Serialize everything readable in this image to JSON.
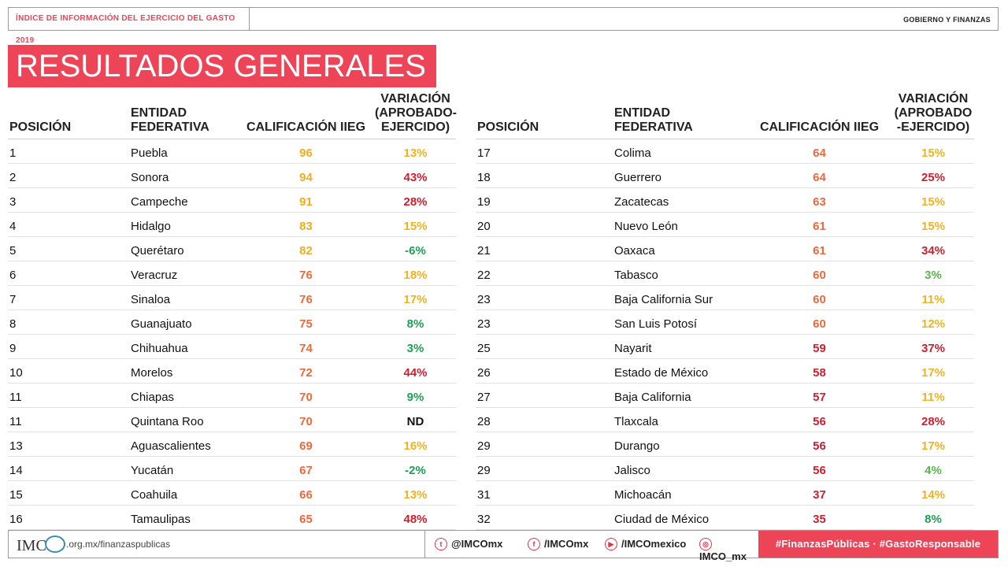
{
  "header": {
    "left_title": "ÍNDICE DE INFORMACIÓN DEL EJERCICIO DEL GASTO 2019",
    "right_title": "GOBIERNO Y FINANZAS"
  },
  "banner": "RESULTADOS GENERALES",
  "table_headers": {
    "position": "POSICIÓN",
    "entity_line1": "ENTIDAD",
    "entity_line2": "FEDERATIVA",
    "score": "CALIFICACIÓN IIEG",
    "variation_left": [
      "VARIACIÓN",
      "(APROBADO-",
      "EJERCIDO)"
    ],
    "variation_right": [
      "VARIACIÓN",
      "(APROBADO",
      "-EJERCIDO)"
    ]
  },
  "colors": {
    "accent": "#ee4458",
    "score_high": "#f0ad1c",
    "score_mid": "#eb6a3b",
    "score_low": "#cc1f2f",
    "var_green": "#1f9e55",
    "var_lightgreen": "#5ab54a",
    "var_yellow": "#efb31f",
    "var_red": "#cc1f2f",
    "var_nd": "#111111"
  },
  "left_rows": [
    {
      "pos": "1",
      "entity": "Puebla",
      "score": "96",
      "var": "13%",
      "score_color": "score_high",
      "var_color": "var_yellow"
    },
    {
      "pos": "2",
      "entity": "Sonora",
      "score": "94",
      "var": "43%",
      "score_color": "score_high",
      "var_color": "var_red"
    },
    {
      "pos": "3",
      "entity": "Campeche",
      "score": "91",
      "var": "28%",
      "score_color": "score_high",
      "var_color": "var_red"
    },
    {
      "pos": "4",
      "entity": "Hidalgo",
      "score": "83",
      "var": "15%",
      "score_color": "score_high",
      "var_color": "var_yellow"
    },
    {
      "pos": "5",
      "entity": "Querétaro",
      "score": "82",
      "var": "-6%",
      "score_color": "score_high",
      "var_color": "var_green"
    },
    {
      "pos": "6",
      "entity": "Veracruz",
      "score": "76",
      "var": "18%",
      "score_color": "score_mid",
      "var_color": "var_yellow"
    },
    {
      "pos": "7",
      "entity": "Sinaloa",
      "score": "76",
      "var": "17%",
      "score_color": "score_mid",
      "var_color": "var_yellow"
    },
    {
      "pos": "8",
      "entity": "Guanajuato",
      "score": "75",
      "var": "8%",
      "score_color": "score_mid",
      "var_color": "var_green"
    },
    {
      "pos": "9",
      "entity": "Chihuahua",
      "score": "74",
      "var": "3%",
      "score_color": "score_mid",
      "var_color": "var_green"
    },
    {
      "pos": "10",
      "entity": "Morelos",
      "score": "72",
      "var": "44%",
      "score_color": "score_mid",
      "var_color": "var_red"
    },
    {
      "pos": "11",
      "entity": "Chiapas",
      "score": "70",
      "var": "9%",
      "score_color": "score_mid",
      "var_color": "var_green"
    },
    {
      "pos": "11",
      "entity": "Quintana Roo",
      "score": "70",
      "var": "ND",
      "score_color": "score_mid",
      "var_color": "var_nd"
    },
    {
      "pos": "13",
      "entity": "Aguascalientes",
      "score": "69",
      "var": "16%",
      "score_color": "score_mid",
      "var_color": "var_yellow"
    },
    {
      "pos": "14",
      "entity": "Yucatán",
      "score": "67",
      "var": "-2%",
      "score_color": "score_mid",
      "var_color": "var_green"
    },
    {
      "pos": "15",
      "entity": "Coahuila",
      "score": "66",
      "var": "13%",
      "score_color": "score_mid",
      "var_color": "var_yellow"
    },
    {
      "pos": "16",
      "entity": "Tamaulipas",
      "score": "65",
      "var": "48%",
      "score_color": "score_mid",
      "var_color": "var_red"
    }
  ],
  "right_rows": [
    {
      "pos": "17",
      "entity": "Colima",
      "score": "64",
      "var": "15%",
      "score_color": "score_mid",
      "var_color": "var_yellow"
    },
    {
      "pos": "18",
      "entity": "Guerrero",
      "score": "64",
      "var": "25%",
      "score_color": "score_mid",
      "var_color": "var_red"
    },
    {
      "pos": "19",
      "entity": "Zacatecas",
      "score": "63",
      "var": "15%",
      "score_color": "score_mid",
      "var_color": "var_yellow"
    },
    {
      "pos": "20",
      "entity": "Nuevo León",
      "score": "61",
      "var": "15%",
      "score_color": "score_mid",
      "var_color": "var_yellow"
    },
    {
      "pos": "21",
      "entity": "Oaxaca",
      "score": "61",
      "var": "34%",
      "score_color": "score_mid",
      "var_color": "var_red"
    },
    {
      "pos": "22",
      "entity": "Tabasco",
      "score": "60",
      "var": "3%",
      "score_color": "score_mid",
      "var_color": "var_lightgreen"
    },
    {
      "pos": "23",
      "entity": "Baja California Sur",
      "score": "60",
      "var": "11%",
      "score_color": "score_mid",
      "var_color": "var_yellow"
    },
    {
      "pos": "23",
      "entity": "San Luis Potosí",
      "score": "60",
      "var": "12%",
      "score_color": "score_mid",
      "var_color": "var_yellow"
    },
    {
      "pos": "25",
      "entity": "Nayarit",
      "score": "59",
      "var": "37%",
      "score_color": "score_low",
      "var_color": "var_red"
    },
    {
      "pos": "26",
      "entity": "Estado de México",
      "score": "58",
      "var": "17%",
      "score_color": "score_low",
      "var_color": "var_yellow"
    },
    {
      "pos": "27",
      "entity": "Baja California",
      "score": "57",
      "var": "11%",
      "score_color": "score_low",
      "var_color": "var_yellow"
    },
    {
      "pos": "28",
      "entity": "Tlaxcala",
      "score": "56",
      "var": "28%",
      "score_color": "score_low",
      "var_color": "var_red"
    },
    {
      "pos": "29",
      "entity": "Durango",
      "score": "56",
      "var": "17%",
      "score_color": "score_low",
      "var_color": "var_yellow"
    },
    {
      "pos": "29",
      "entity": "Jalisco",
      "score": "56",
      "var": "4%",
      "score_color": "score_low",
      "var_color": "var_lightgreen"
    },
    {
      "pos": "31",
      "entity": "Michoacán",
      "score": "37",
      "var": "14%",
      "score_color": "score_low",
      "var_color": "var_yellow"
    },
    {
      "pos": "32",
      "entity": "Ciudad de México",
      "score": "35",
      "var": "8%",
      "score_color": "score_low",
      "var_color": "var_green"
    }
  ],
  "footer": {
    "logo_text": "IMC",
    "url": ".org.mx/finanzaspublicas",
    "twitter": "@IMCOmx",
    "facebook": "/IMCOmx",
    "youtube": "/IMCOmexico",
    "instagram": "IMCO_mx",
    "hashtags": "#FinanzasPúblicas · #GastoResponsable",
    "icons": [
      "twitter-icon",
      "facebook-icon",
      "youtube-icon",
      "instagram-icon"
    ]
  }
}
